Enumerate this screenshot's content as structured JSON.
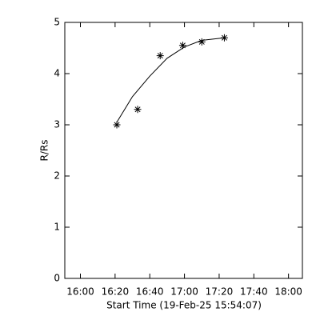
{
  "chart_data": {
    "type": "scatter",
    "xlabel": "Start Time (19-Feb-25 15:54:07)",
    "ylabel": "R/Rs",
    "xlim": [
      -9,
      128
    ],
    "ylim": [
      0,
      5
    ],
    "xticks": [
      {
        "value": 0,
        "label": "16:00"
      },
      {
        "value": 20,
        "label": "16:20"
      },
      {
        "value": 40,
        "label": "16:40"
      },
      {
        "value": 60,
        "label": "17:00"
      },
      {
        "value": 80,
        "label": "17:20"
      },
      {
        "value": 100,
        "label": "17:40"
      },
      {
        "value": 120,
        "label": "18:00"
      }
    ],
    "yticks": [
      0,
      1,
      2,
      3,
      4,
      5
    ],
    "series": [
      {
        "type": "scatter",
        "color": "#000000",
        "x": [
          21,
          33,
          46,
          59,
          70,
          83
        ],
        "values": [
          3.0,
          3.3,
          4.35,
          4.55,
          4.62,
          4.7
        ]
      },
      {
        "type": "line",
        "color": "#000000",
        "x": [
          21,
          30,
          40,
          50,
          60,
          70,
          83
        ],
        "values": [
          3.05,
          3.55,
          3.95,
          4.3,
          4.52,
          4.65,
          4.7
        ]
      }
    ]
  }
}
